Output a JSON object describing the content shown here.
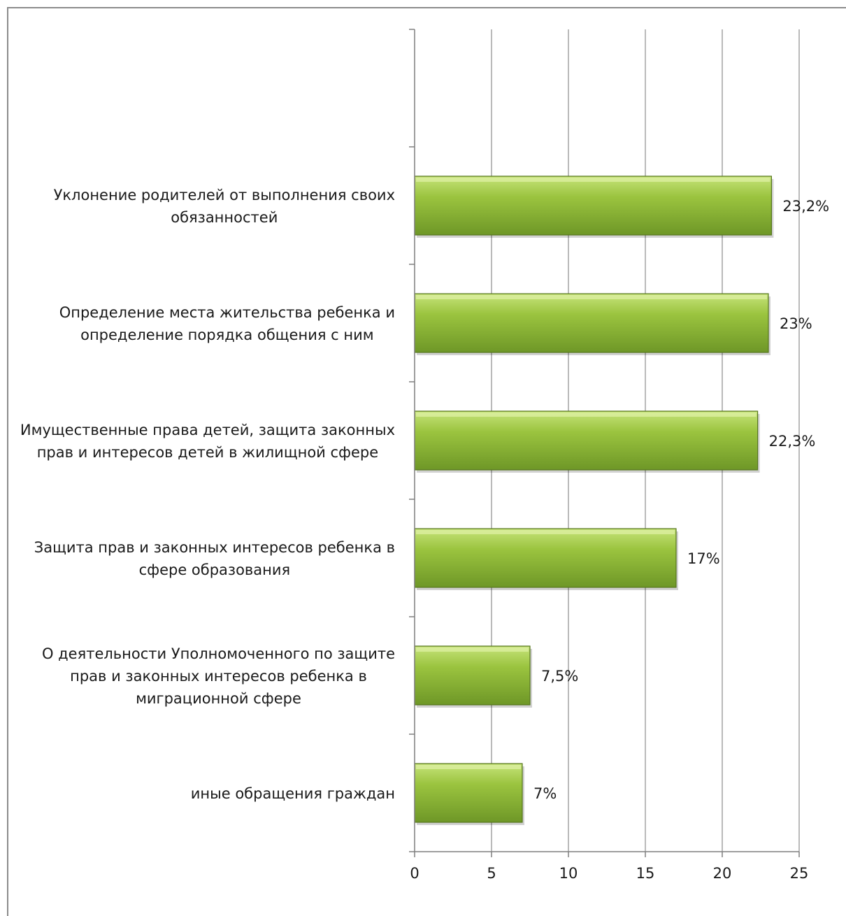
{
  "chart_data": {
    "type": "bar",
    "orientation": "horizontal",
    "categories": [
      [
        "Уклонение родителей от выполнения своих",
        "обязанностей"
      ],
      [
        "Определение места жительства ребенка и",
        "определение порядка общения с ним"
      ],
      [
        "Имущественные права детей, защита законных",
        "прав и интересов детей в жилищной сфере"
      ],
      [
        "Защита прав и законных интересов ребенка в",
        "сфере образования"
      ],
      [
        "О деятельности Уполномоченного по защите",
        "прав и законных интересов ребенка в",
        "миграционной сфере"
      ],
      [
        "иные обращения граждан"
      ]
    ],
    "values": [
      23.2,
      23,
      22.3,
      17,
      7.5,
      7
    ],
    "data_labels": [
      "23,2%",
      "23%",
      "22,3%",
      "17%",
      "7,5%",
      "7%"
    ],
    "xlim": [
      0,
      25
    ],
    "x_ticks": [
      0,
      5,
      10,
      15,
      20,
      25
    ],
    "x_tick_labels": [
      "0",
      "5",
      "10",
      "15",
      "20",
      "25"
    ],
    "category_slots": 7,
    "grid": true,
    "legend": "none",
    "colors": {
      "bar_light": "#c6e37a",
      "bar_mid": "#9bc43f",
      "bar_dark": "#6e9727",
      "bar_edge": "#55761c"
    }
  }
}
